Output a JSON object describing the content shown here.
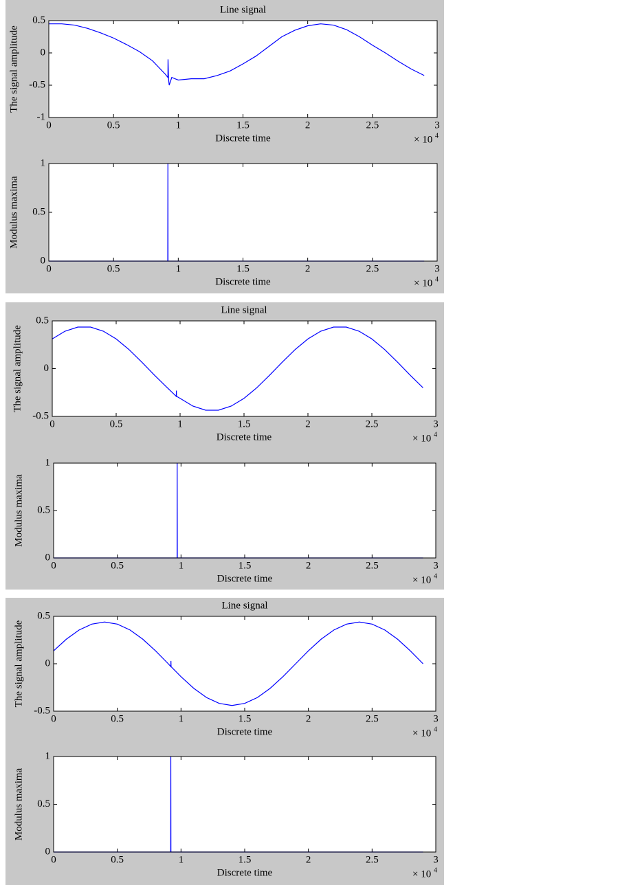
{
  "chart_data": [
    {
      "type": "line",
      "title": "Line signal",
      "x_label": "Discrete time",
      "y_label": "The signal amplitude",
      "x_scale_label": "× 10",
      "x_scale_exponent": "4",
      "xlim": [
        0,
        3
      ],
      "xticks": [
        0,
        0.5,
        1,
        1.5,
        2,
        2.5,
        3
      ],
      "ylim": [
        -1,
        0.5
      ],
      "yticks": [
        -1,
        -0.5,
        0,
        0.5
      ],
      "color": "#0000ff",
      "x": [
        0,
        0.1,
        0.2,
        0.3,
        0.4,
        0.5,
        0.6,
        0.7,
        0.8,
        0.9,
        0.92,
        0.921,
        0.925,
        0.93,
        0.95,
        1.0,
        1.1,
        1.2,
        1.3,
        1.4,
        1.5,
        1.6,
        1.7,
        1.8,
        1.9,
        2.0,
        2.1,
        2.2,
        2.3,
        2.4,
        2.5,
        2.6,
        2.7,
        2.8,
        2.9
      ],
      "values": [
        0.45,
        0.45,
        0.43,
        0.38,
        0.31,
        0.23,
        0.13,
        0.02,
        -0.12,
        -0.33,
        -0.38,
        -0.1,
        -0.4,
        -0.5,
        -0.38,
        -0.42,
        -0.4,
        -0.4,
        -0.35,
        -0.28,
        -0.17,
        -0.05,
        0.1,
        0.25,
        0.35,
        0.42,
        0.45,
        0.43,
        0.36,
        0.25,
        0.12,
        0.0,
        -0.13,
        -0.25,
        -0.35
      ]
    },
    {
      "type": "line",
      "x_label": "Discrete time",
      "y_label": "Modulus maxima",
      "x_scale_label": "× 10",
      "x_scale_exponent": "4",
      "xlim": [
        0,
        3
      ],
      "xticks": [
        0,
        0.5,
        1,
        1.5,
        2,
        2.5,
        3
      ],
      "ylim": [
        0,
        1
      ],
      "yticks": [
        0,
        0.5,
        1
      ],
      "color": "#0000ff",
      "x": [
        0,
        0.919,
        0.92,
        0.921,
        2.9
      ],
      "values": [
        0,
        0,
        1,
        0,
        0
      ]
    },
    {
      "type": "line",
      "title": "Line signal",
      "x_label": "Discrete time",
      "y_label": "The signal amplitude",
      "x_scale_label": "× 10",
      "x_scale_exponent": "4",
      "xlim": [
        0,
        3
      ],
      "xticks": [
        0,
        0.5,
        1,
        1.5,
        2,
        2.5,
        3
      ],
      "ylim": [
        -0.5,
        0.5
      ],
      "yticks": [
        -0.5,
        0,
        0.5
      ],
      "color": "#0000ff",
      "x": [
        0,
        0.1,
        0.2,
        0.3,
        0.4,
        0.5,
        0.6,
        0.7,
        0.8,
        0.9,
        0.97,
        0.971,
        0.972,
        1.0,
        1.1,
        1.2,
        1.3,
        1.4,
        1.5,
        1.6,
        1.7,
        1.8,
        1.9,
        2.0,
        2.1,
        2.2,
        2.3,
        2.4,
        2.5,
        2.6,
        2.7,
        2.8,
        2.9
      ],
      "values": [
        0.311,
        0.392,
        0.435,
        0.435,
        0.392,
        0.311,
        0.2,
        0.069,
        -0.069,
        -0.2,
        -0.29,
        -0.23,
        -0.29,
        -0.311,
        -0.392,
        -0.435,
        -0.435,
        -0.392,
        -0.311,
        -0.2,
        -0.069,
        0.069,
        0.2,
        0.311,
        0.392,
        0.435,
        0.435,
        0.392,
        0.311,
        0.2,
        0.069,
        -0.069,
        -0.2
      ]
    },
    {
      "type": "line",
      "x_label": "Discrete time",
      "y_label": "Modulus maxima",
      "x_scale_label": "× 10",
      "x_scale_exponent": "4",
      "xlim": [
        0,
        3
      ],
      "xticks": [
        0,
        0.5,
        1,
        1.5,
        2,
        2.5,
        3
      ],
      "ylim": [
        0,
        1
      ],
      "yticks": [
        0,
        0.5,
        1
      ],
      "color": "#0000ff",
      "x": [
        0,
        0.969,
        0.97,
        0.971,
        2.9
      ],
      "values": [
        0,
        0,
        1,
        0,
        0
      ]
    },
    {
      "type": "line",
      "title": "Line signal",
      "x_label": "Discrete time",
      "y_label": "The signal amplitude",
      "x_scale_label": "× 10",
      "x_scale_exponent": "4",
      "xlim": [
        0,
        3
      ],
      "xticks": [
        0,
        0.5,
        1,
        1.5,
        2,
        2.5,
        3
      ],
      "ylim": [
        -0.5,
        0.5
      ],
      "yticks": [
        -0.5,
        0,
        0.5
      ],
      "color": "#0000ff",
      "x": [
        0,
        0.1,
        0.2,
        0.3,
        0.4,
        0.5,
        0.6,
        0.7,
        0.8,
        0.9,
        0.92,
        0.921,
        0.922,
        1.0,
        1.1,
        1.2,
        1.3,
        1.4,
        1.5,
        1.6,
        1.7,
        1.8,
        1.9,
        2.0,
        2.1,
        2.2,
        2.3,
        2.4,
        2.5,
        2.6,
        2.7,
        2.8,
        2.9
      ],
      "values": [
        0.136,
        0.259,
        0.356,
        0.418,
        0.44,
        0.418,
        0.356,
        0.259,
        0.136,
        0,
        -0.03,
        0.03,
        -0.03,
        -0.136,
        -0.259,
        -0.356,
        -0.418,
        -0.44,
        -0.418,
        -0.356,
        -0.259,
        -0.136,
        0,
        0.136,
        0.259,
        0.356,
        0.418,
        0.44,
        0.418,
        0.356,
        0.259,
        0.136,
        0
      ]
    },
    {
      "type": "line",
      "x_label": "Discrete time",
      "y_label": "Modulus maxima",
      "x_scale_label": "× 10",
      "x_scale_exponent": "4",
      "xlim": [
        0,
        3
      ],
      "xticks": [
        0,
        0.5,
        1,
        1.5,
        2,
        2.5,
        3
      ],
      "ylim": [
        0,
        1
      ],
      "yticks": [
        0,
        0.5,
        1
      ],
      "color": "#0000ff",
      "x": [
        0,
        0.919,
        0.92,
        0.921,
        2.9
      ],
      "values": [
        0,
        0,
        1,
        0,
        0
      ]
    }
  ]
}
